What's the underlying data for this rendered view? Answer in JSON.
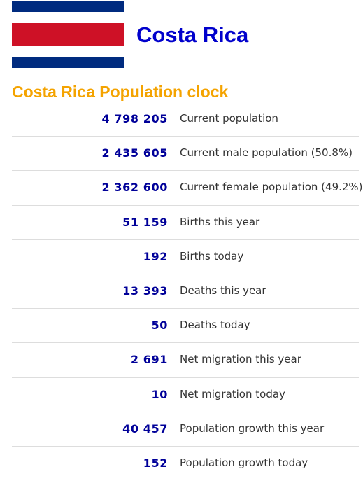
{
  "country": {
    "name": "Costa Rica",
    "flag_colors": {
      "blue": "#002b7f",
      "white": "#ffffff",
      "red": "#ce1126"
    }
  },
  "clock": {
    "title": "Costa Rica Population clock"
  },
  "colors": {
    "country_title": "#0000cc",
    "clock_title": "#f4a300",
    "rule": "#f4a300",
    "value": "#000099",
    "label": "#333333"
  },
  "stats": [
    {
      "value": "4 798 205",
      "label": "Current population"
    },
    {
      "value": "2 435 605",
      "label": "Current male population (50.8%)"
    },
    {
      "value": "2 362 600",
      "label": "Current female population (49.2%)"
    },
    {
      "value": "51 159",
      "label": "Births this year"
    },
    {
      "value": "192",
      "label": "Births today"
    },
    {
      "value": "13 393",
      "label": "Deaths this year"
    },
    {
      "value": "50",
      "label": "Deaths today"
    },
    {
      "value": "2 691",
      "label": "Net migration this year"
    },
    {
      "value": "10",
      "label": "Net migration today"
    },
    {
      "value": "40 457",
      "label": "Population growth this year"
    },
    {
      "value": "152",
      "label": "Population growth today"
    }
  ]
}
